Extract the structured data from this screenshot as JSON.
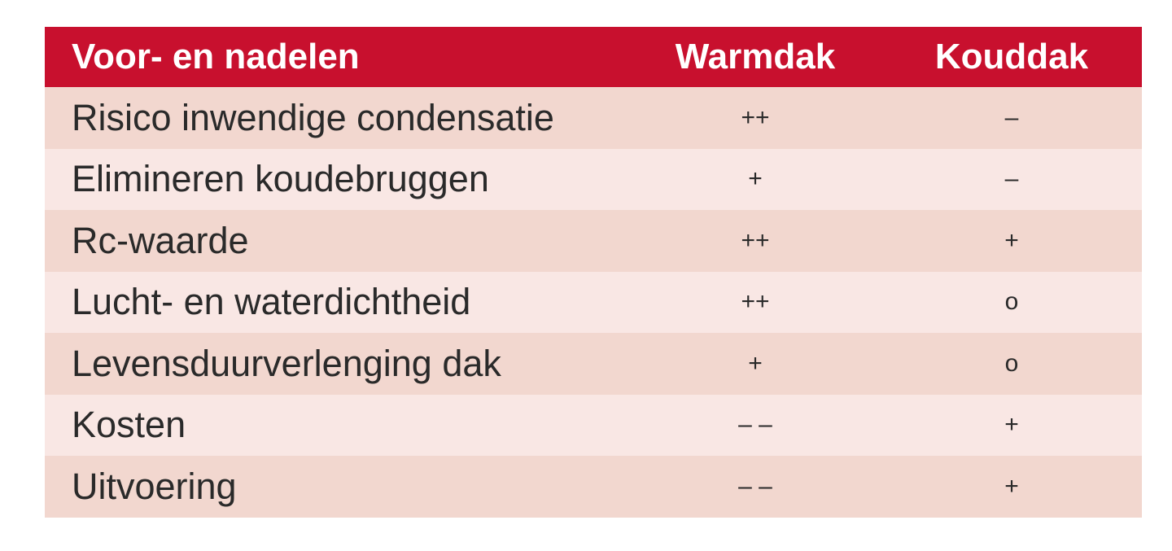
{
  "table": {
    "colors": {
      "header_bg": "#c8102e",
      "row_dark": "#f2d7cf",
      "row_light": "#f9e7e4"
    },
    "headers": [
      "Voor- en nadelen",
      "Warmdak",
      "Kouddak"
    ],
    "rows": [
      [
        "Risico inwendige condensatie",
        "++",
        "–"
      ],
      [
        "Elimineren koudebruggen",
        "+",
        "–"
      ],
      [
        "Rc-waarde",
        "++",
        "+"
      ],
      [
        "Lucht- en waterdichtheid",
        "++",
        "o"
      ],
      [
        "Levensduurverlenging dak",
        "+",
        "o"
      ],
      [
        "Kosten",
        "– –",
        "+"
      ],
      [
        "Uitvoering",
        "– –",
        "+"
      ]
    ]
  }
}
